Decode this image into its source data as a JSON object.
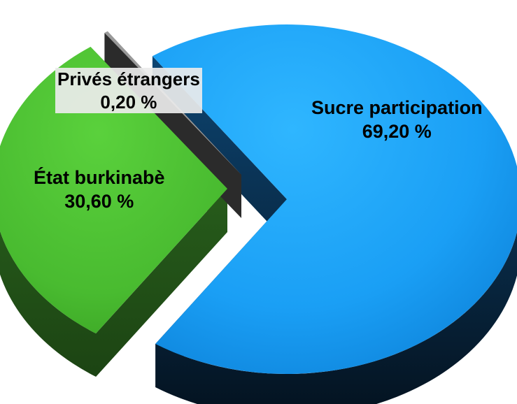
{
  "chart_data": {
    "type": "pie",
    "title": "",
    "style": "3d exploded pie",
    "slices": [
      {
        "label": "Sucre participation",
        "value": 69.2,
        "value_label": "69,20 %",
        "color": "#1a9ff5",
        "color_side": "#0b3d66"
      },
      {
        "label": "État burkinabè",
        "value": 30.6,
        "value_label": "30,60 %",
        "color": "#4cbd33",
        "color_side": "#2d6a1f"
      },
      {
        "label": "Privés étrangers",
        "value": 0.2,
        "value_label": "0,20 %",
        "color": "#8a8a8a",
        "color_side": "#2b2b2b"
      }
    ],
    "legend": "none"
  }
}
